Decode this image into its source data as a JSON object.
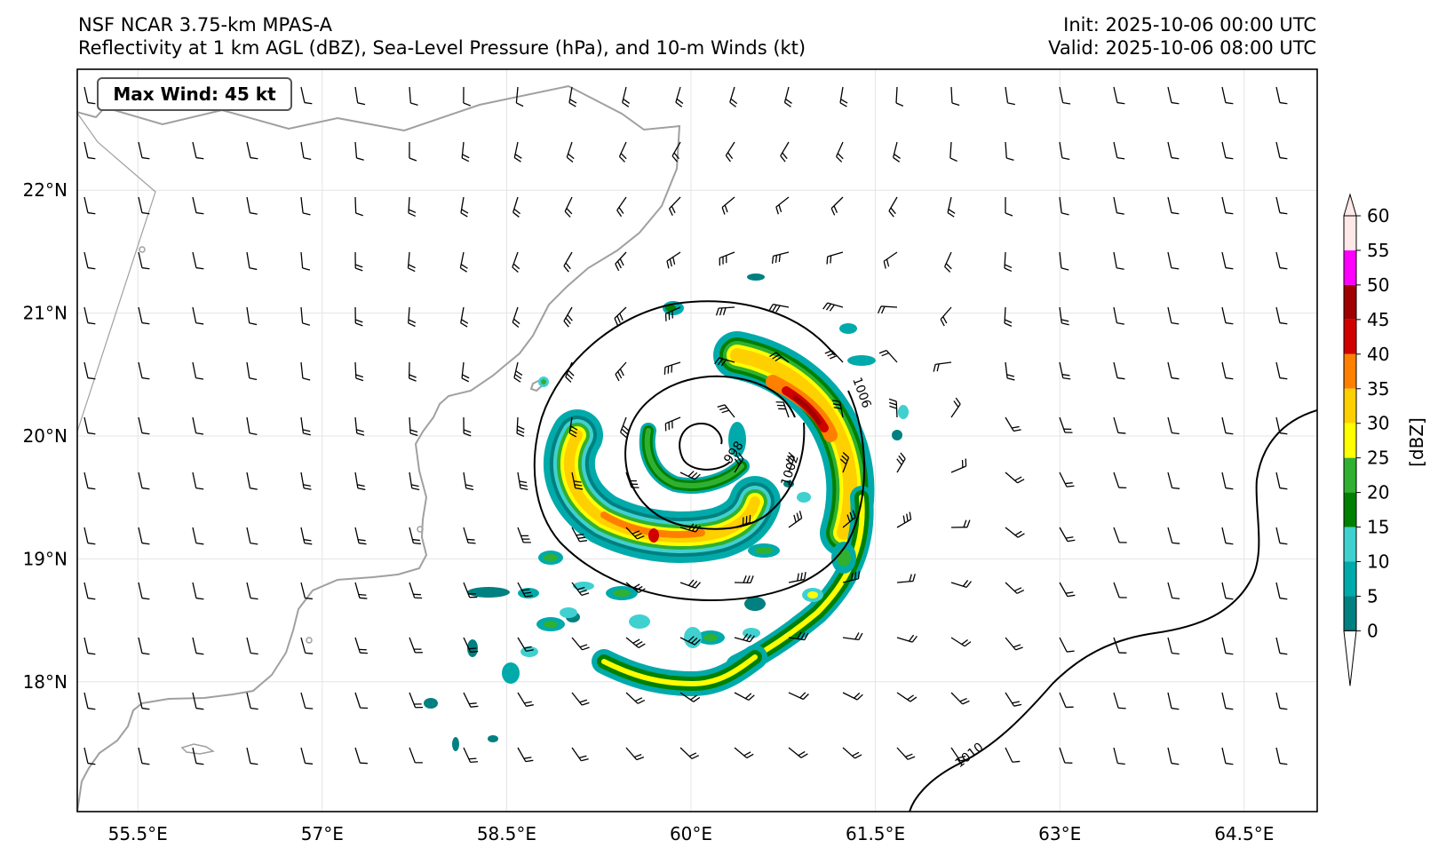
{
  "header": {
    "model": "NSF NCAR 3.75-km MPAS-A",
    "fields": "Reflectivity at 1 km AGL (dBZ), Sea-Level Pressure (hPa), and 10-m Winds (kt)",
    "init": "Init: 2025-10-06 00:00 UTC",
    "valid": "Valid: 2025-10-06 08:00 UTC"
  },
  "badge": {
    "text": "Max Wind: 45 kt"
  },
  "map": {
    "lon_ticks": [
      "55.5°E",
      "57°E",
      "58.5°E",
      "60°E",
      "61.5°E",
      "63°E",
      "64.5°E"
    ],
    "lat_ticks": [
      "22°N",
      "21°N",
      "20°N",
      "19°N",
      "18°N"
    ],
    "lon_range": [
      55.0,
      65.0
    ],
    "lat_range": [
      17.0,
      23.0
    ],
    "storm_center": {
      "lon": 60.0,
      "lat": 19.9
    },
    "grid": true
  },
  "contours": {
    "labels": [
      "998",
      "1002",
      "1006",
      "1010"
    ]
  },
  "colorbar": {
    "label": "[dBZ]",
    "ticks": [
      "0",
      "5",
      "10",
      "15",
      "20",
      "25",
      "30",
      "35",
      "40",
      "45",
      "50",
      "55",
      "60"
    ],
    "colors": [
      "#008080",
      "#00aaaa",
      "#40d0d0",
      "#008000",
      "#30b030",
      "#ffff00",
      "#ffd000",
      "#ff8000",
      "#d00000",
      "#a00000",
      "#ff00ff",
      "#ffe8e8"
    ]
  },
  "colors": {
    "coast": "#a0a0a0",
    "contour": "#000000",
    "grid": "#e4e4e4"
  }
}
